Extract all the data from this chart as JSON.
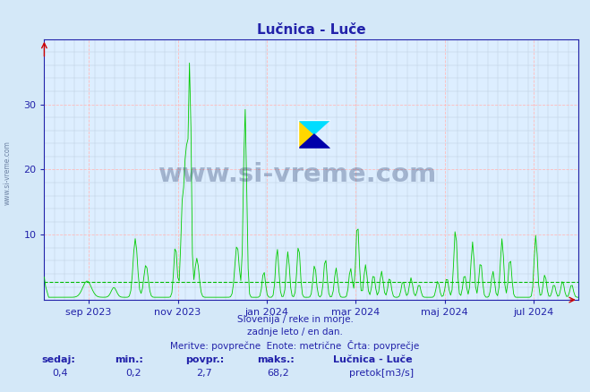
{
  "title": "Lučnica - Luče",
  "bg_color": "#d4e8f8",
  "plot_bg_color": "#ddeeff",
  "grid_color_major": "#ffbbbb",
  "grid_color_minor": "#bbccdd",
  "line_color": "#00cc00",
  "avg_line_color": "#00bb00",
  "axis_color": "#2222aa",
  "title_color": "#2222aa",
  "watermark_color": "#1a3060",
  "ylim": [
    0,
    40
  ],
  "yticks": [
    10,
    20,
    30
  ],
  "avg_value": 2.7,
  "max_value": 68.2,
  "min_value": 0.2,
  "current_value": 0.4,
  "footer_line1": "Slovenija / reke in morje.",
  "footer_line2": "zadnje leto / en dan.",
  "footer_line3": "Meritve: povprečne  Enote: metrične  Črta: povprečje",
  "legend_title": "Lučnica - Luče",
  "legend_label": "pretok[m3/s]",
  "legend_color": "#00cc00",
  "bottom_labels": [
    "sedaj:",
    "min.:",
    "povpr.:",
    "maks.:"
  ],
  "bottom_values": [
    "0,4",
    "0,2",
    "2,7",
    "68,2"
  ],
  "watermark_text": "www.si-vreme.com",
  "side_text": "www.si-vreme.com",
  "x_tick_labels": [
    "sep 2023",
    "nov 2023",
    "jan 2024",
    "mar 2024",
    "maj 2024",
    "jul 2024"
  ],
  "x_tick_positions": [
    0.083,
    0.25,
    0.417,
    0.583,
    0.75,
    0.917
  ],
  "n_points": 365
}
